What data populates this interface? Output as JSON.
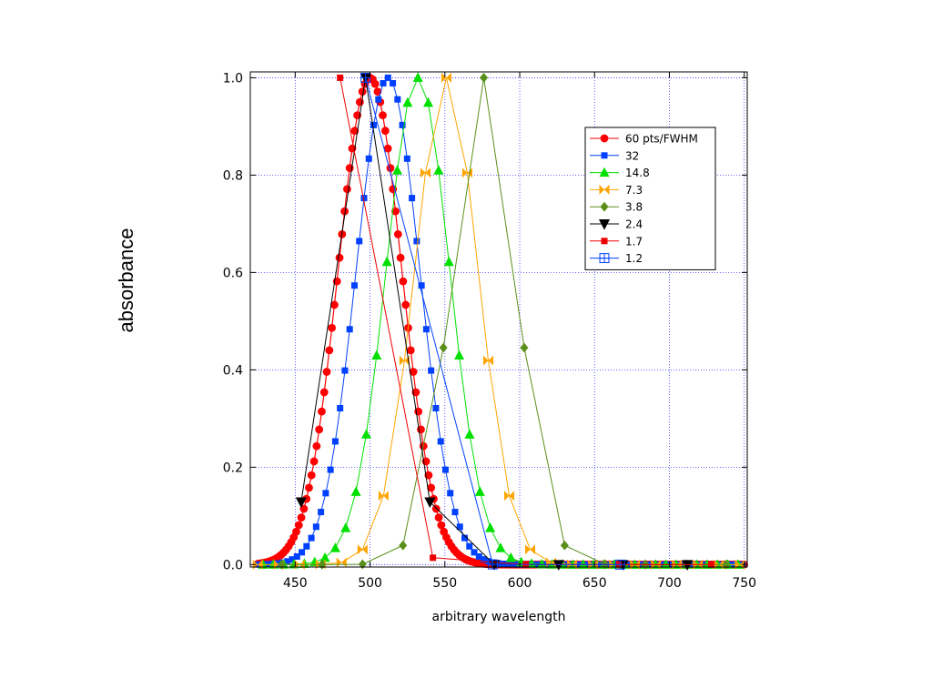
{
  "chart_data": {
    "type": "line",
    "xlabel": "arbitrary wavelength",
    "ylabel": "absorbance",
    "xlim": [
      420,
      752
    ],
    "ylim": [
      -0.005,
      1.012
    ],
    "x_ticks": [
      450,
      500,
      550,
      600,
      650,
      700,
      750
    ],
    "y_ticks": [
      0.0,
      0.2,
      0.4,
      0.6,
      0.8,
      1.0
    ],
    "x_tick_labels": [
      "450",
      "500",
      "550",
      "600",
      "650",
      "700",
      "750"
    ],
    "y_tick_labels": [
      "0.0",
      "0.2",
      "0.4",
      "0.6",
      "0.8",
      "1.0"
    ],
    "grid": true,
    "legend_position": "top-right",
    "x_range": [
      424,
      750
    ],
    "series": [
      {
        "name": "60 pts/FWHM",
        "center": 500,
        "spacing": 1.7,
        "color": "#ff0000",
        "marker": "circle"
      },
      {
        "name": "32",
        "center": 512,
        "spacing": 3.2,
        "color": "#0040ff",
        "marker": "square"
      },
      {
        "name": "14.8",
        "center": 532,
        "spacing": 6.9,
        "color": "#00e000",
        "marker": "triangle-up"
      },
      {
        "name": "7.3",
        "center": 551,
        "spacing": 14,
        "color": "#ffa500",
        "marker": "bowtie"
      },
      {
        "name": "3.8",
        "center": 576,
        "spacing": 27,
        "color": "#5a8f1a",
        "marker": "diamond"
      },
      {
        "name": "2.4",
        "center": 497,
        "spacing": 43,
        "color": "#000000",
        "marker": "triangle-down"
      },
      {
        "name": "1.7",
        "center": 480,
        "spacing": 62,
        "color": "#ee0000",
        "marker": "square"
      },
      {
        "name": "1.2",
        "center": 497,
        "spacing": 85,
        "color": "#0040ff",
        "marker": "square-cross"
      }
    ],
    "peak_value": 1.0,
    "fwhm": 50
  }
}
